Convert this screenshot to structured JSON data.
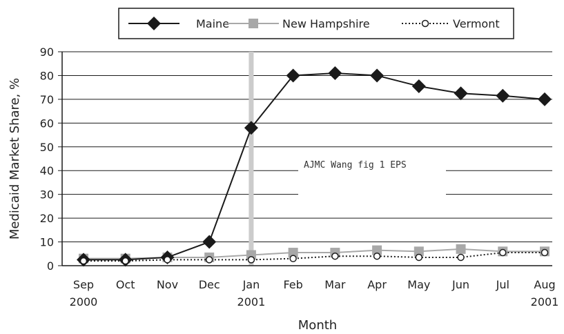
{
  "chart_data": {
    "type": "line",
    "xlabel": "Month",
    "ylabel": "Medicaid Market Share, %",
    "ylim": [
      0,
      90
    ],
    "yticks": [
      0,
      10,
      20,
      30,
      40,
      50,
      60,
      70,
      80,
      90
    ],
    "categories": [
      "Sep",
      "Oct",
      "Nov",
      "Dec",
      "Jan",
      "Feb",
      "Mar",
      "Apr",
      "May",
      "Jun",
      "Jul",
      "Aug"
    ],
    "category_sublabels": [
      "2000",
      "",
      "",
      "",
      "2001",
      "",
      "",
      "",
      "",
      "",
      "",
      "2001"
    ],
    "highlight_category": "Jan",
    "grid": "horizontal",
    "legend_position": "top",
    "overlay_label": "AJMC Wang fig 1 EPS",
    "series": [
      {
        "name": "Maine",
        "color": "#1a1a1a",
        "marker": "diamond",
        "line": "solid",
        "values": [
          2.5,
          2.5,
          3.5,
          10,
          58,
          80,
          81,
          80,
          75.5,
          72.5,
          71.5,
          70
        ]
      },
      {
        "name": "New Hampshire",
        "color": "#a8a8a8",
        "marker": "square",
        "line": "solid",
        "values": [
          3,
          3,
          3.5,
          3.5,
          4.5,
          5.5,
          5.5,
          6.5,
          6,
          7,
          6,
          6
        ]
      },
      {
        "name": "Vermont",
        "color": "#1a1a1a",
        "marker": "circle",
        "line": "dotted",
        "values": [
          2,
          2,
          2.5,
          2.5,
          2.5,
          3,
          4,
          4,
          3.5,
          3.5,
          5.5,
          5.5
        ]
      }
    ]
  }
}
